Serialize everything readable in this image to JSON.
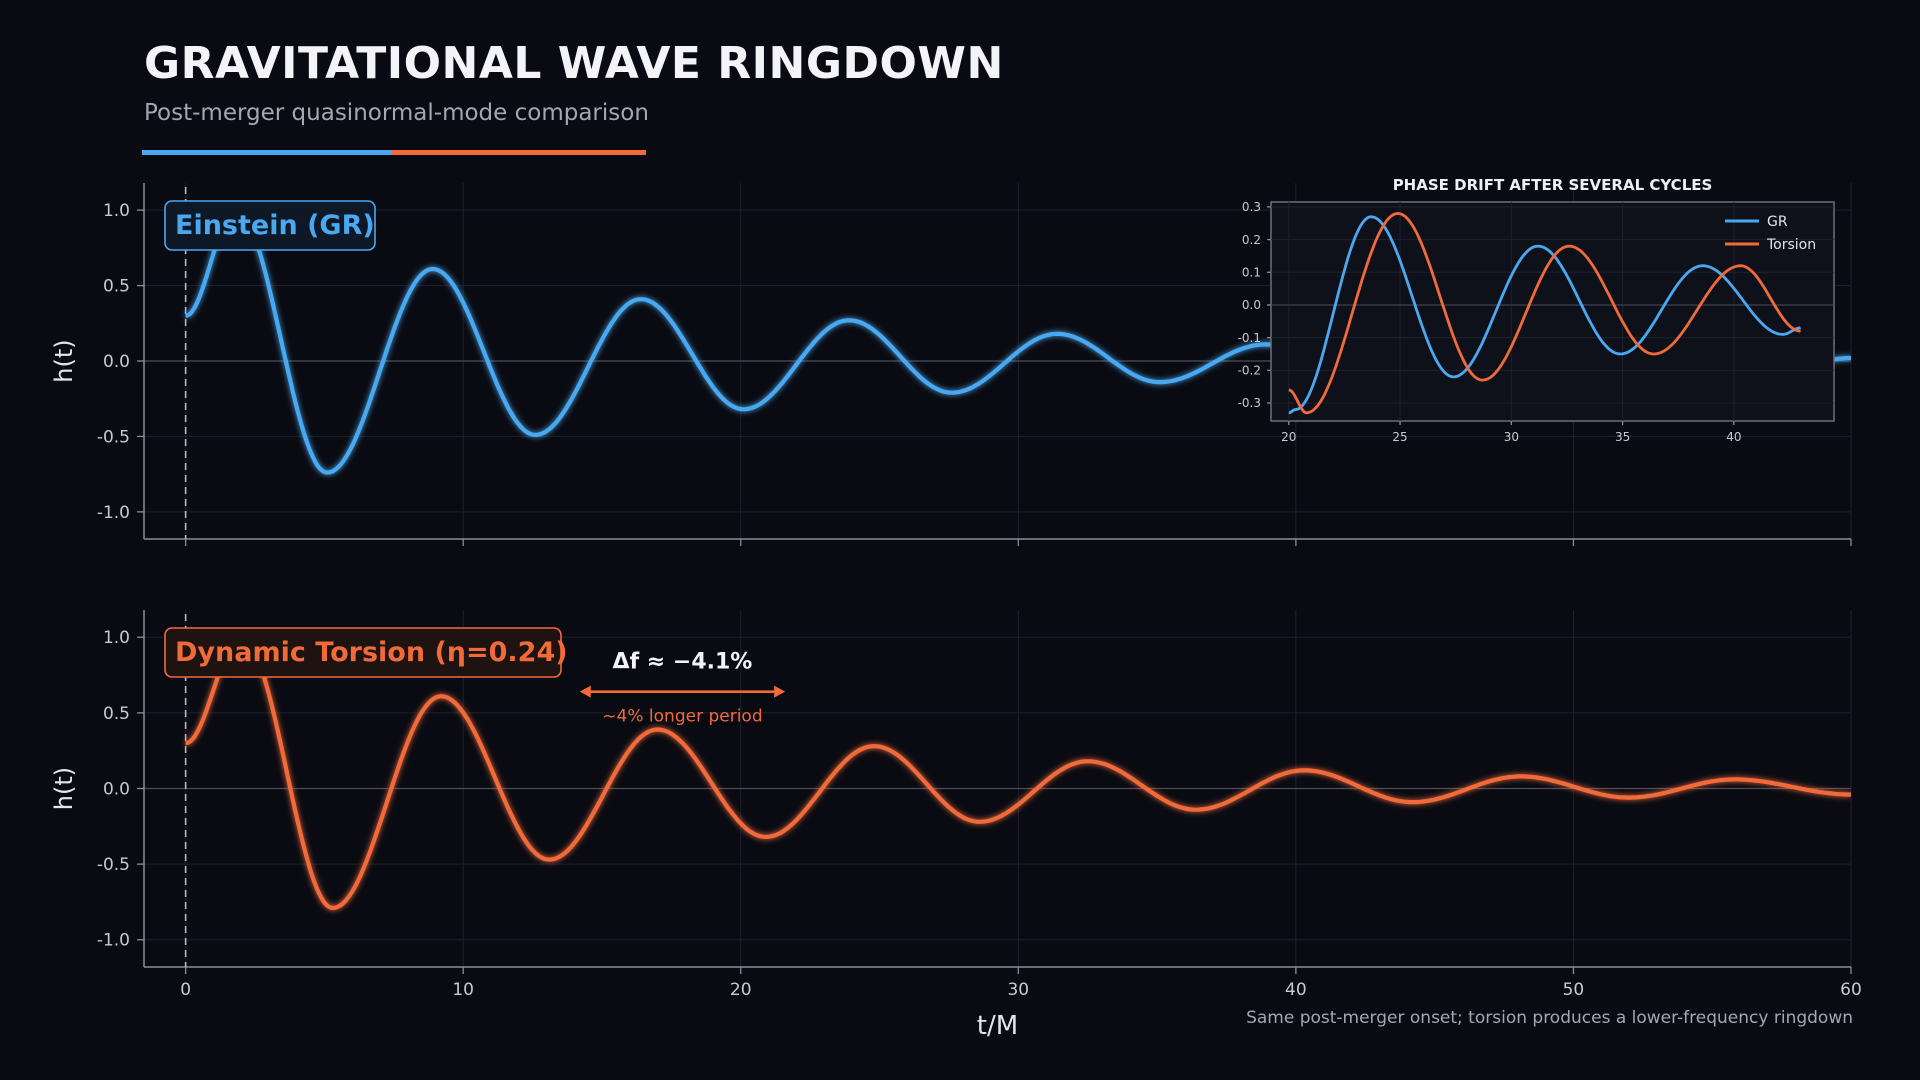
{
  "header": {
    "title": "GRAVITATIONAL WAVE RINGDOWN",
    "subtitle": "Post-merger quasinormal-mode comparison"
  },
  "colors": {
    "background": "#0a0b12",
    "gr": "#4aa8f0",
    "torsion": "#f06a3a",
    "grid": "#1d2030",
    "axis": "#8a8c98",
    "text": "#c8c9d2"
  },
  "footnote": "Same post-merger onset; torsion produces a lower-frequency ringdown",
  "chart_data": [
    {
      "type": "line",
      "panel": "top",
      "label_box": "Einstein (GR)",
      "ylabel": "h(t)",
      "xlim": [
        -1.5,
        60
      ],
      "ylim": [
        -1.18,
        1.18
      ],
      "xticks": [
        0,
        10,
        20,
        30,
        40,
        50,
        60
      ],
      "yticks": [
        1.0,
        0.5,
        0.0,
        -0.5,
        -1.0
      ],
      "ytick_labels": [
        "1.0",
        "0.5",
        "0.0",
        "-0.5",
        "-1.0"
      ],
      "onset_marker_x": 0,
      "series": [
        {
          "color": "#4aa8f0",
          "x": [
            0,
            1.8,
            5.1,
            8.9,
            12.6,
            16.4,
            20.1,
            23.9,
            27.6,
            31.4,
            35.1,
            38.9,
            42.6,
            46.4,
            50.1,
            53.9,
            57.6,
            60
          ],
          "y": [
            0.3,
            1.0,
            -0.74,
            0.61,
            -0.49,
            0.41,
            -0.32,
            0.27,
            -0.21,
            0.18,
            -0.14,
            0.11,
            -0.09,
            0.07,
            -0.06,
            0.05,
            -0.04,
            0.02
          ]
        }
      ]
    },
    {
      "type": "line",
      "panel": "bottom",
      "label_box": "Dynamic Torsion (η=0.24)",
      "ylabel": "h(t)",
      "xlabel": "t/M",
      "xlim": [
        -1.5,
        60
      ],
      "ylim": [
        -1.18,
        1.18
      ],
      "xticks": [
        0,
        10,
        20,
        30,
        40,
        50,
        60
      ],
      "xtick_labels": [
        "0",
        "10",
        "20",
        "30",
        "40",
        "50",
        "60"
      ],
      "yticks": [
        1.0,
        0.5,
        0.0,
        -0.5,
        -1.0
      ],
      "ytick_labels": [
        "1.0",
        "0.5",
        "0.0",
        "-0.5",
        "-1.0"
      ],
      "onset_marker_x": 0,
      "annotation": {
        "title": "Δf ≈ −4.1%",
        "note": "~4% longer period",
        "arrow_x": [
          14.2,
          21.6
        ],
        "arrow_y": 0.64
      },
      "series": [
        {
          "color": "#f06a3a",
          "x": [
            0,
            2.0,
            5.3,
            9.2,
            13.1,
            17.0,
            20.9,
            24.8,
            28.6,
            32.5,
            36.4,
            40.3,
            44.2,
            48.1,
            52.0,
            55.8,
            60
          ],
          "y": [
            0.3,
            1.0,
            -0.79,
            0.61,
            -0.47,
            0.39,
            -0.32,
            0.28,
            -0.22,
            0.18,
            -0.14,
            0.12,
            -0.09,
            0.08,
            -0.06,
            0.06,
            -0.04
          ]
        }
      ]
    },
    {
      "type": "line",
      "panel": "inset",
      "title": "PHASE DRIFT AFTER SEVERAL CYCLES",
      "xlim": [
        19.2,
        44.5
      ],
      "ylim": [
        -0.355,
        0.315
      ],
      "xticks": [
        20,
        25,
        30,
        35,
        40
      ],
      "xtick_labels": [
        "20",
        "25",
        "30",
        "35",
        "40"
      ],
      "yticks": [
        0.3,
        0.2,
        0.1,
        0.0,
        -0.1,
        -0.2,
        -0.3
      ],
      "ytick_labels": [
        "0.3",
        "0.2",
        "0.1",
        "0.0",
        "-0.1",
        "-0.2",
        "-0.3"
      ],
      "legend_position": "top-right",
      "series": [
        {
          "name": "GR",
          "color": "#4aa8f0",
          "x": [
            20,
            20.3,
            23.7,
            27.4,
            31.2,
            34.9,
            38.6,
            42.2,
            43.0
          ],
          "y": [
            -0.33,
            -0.32,
            0.27,
            -0.22,
            0.18,
            -0.15,
            0.12,
            -0.09,
            -0.07
          ]
        },
        {
          "name": "Torsion",
          "color": "#f06a3a",
          "x": [
            20,
            20.8,
            24.9,
            28.7,
            32.6,
            36.4,
            40.3,
            43.0
          ],
          "y": [
            -0.26,
            -0.33,
            0.28,
            -0.23,
            0.18,
            -0.15,
            0.12,
            -0.08
          ]
        }
      ]
    }
  ]
}
